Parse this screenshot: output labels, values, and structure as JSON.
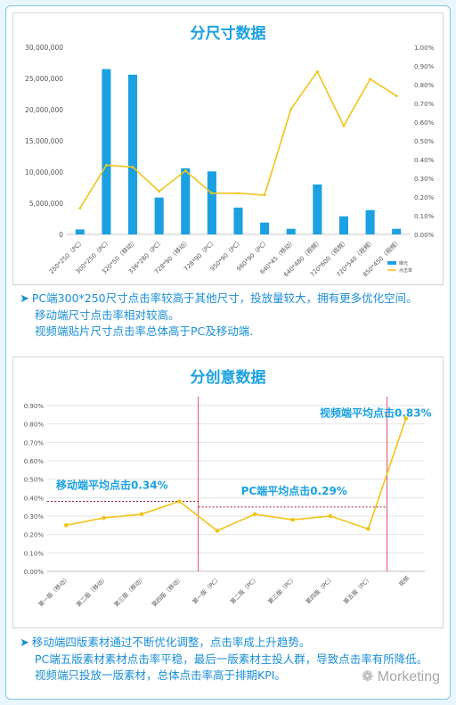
{
  "chart_data": [
    {
      "type": "bar",
      "title": "分尺寸数据",
      "categories": [
        "250*250（PC）",
        "300*250（PC）",
        "320*50（移动）",
        "336*280（PC）",
        "728*90（移动）",
        "728*90（PC）",
        "950*90（PC）",
        "960*90（PC）",
        "640*45（移动）",
        "640*480（视频）",
        "720*600（视频）",
        "720*540（视频）",
        "850*450（视频）"
      ],
      "series": [
        {
          "name": "曝光",
          "type": "bar",
          "axis": "left",
          "values": [
            800000,
            26500000,
            25600000,
            5900000,
            10600000,
            10100000,
            4300000,
            1900000,
            900000,
            8000000,
            2900000,
            3900000,
            900000
          ]
        },
        {
          "name": "点击率",
          "type": "line",
          "axis": "right",
          "values": [
            0.0014,
            0.0037,
            0.0036,
            0.0023,
            0.0034,
            0.0022,
            0.0022,
            0.0021,
            0.0067,
            0.0087,
            0.0058,
            0.0083,
            0.0074
          ]
        }
      ],
      "yleft": {
        "min": 0,
        "max": 30000000,
        "ticks": [
          "0",
          "5,000,000",
          "10,000,000",
          "15,000,000",
          "20,000,000",
          "25,000,000",
          "30,000,000"
        ]
      },
      "yright": {
        "min": 0,
        "max": 0.01,
        "ticks": [
          "0.00%",
          "0.10%",
          "0.20%",
          "0.30%",
          "0.40%",
          "0.50%",
          "0.60%",
          "0.70%",
          "0.80%",
          "0.90%",
          "1.00%"
        ]
      },
      "legend": "bottom-right",
      "colors": {
        "bar": "#1ba1e2",
        "line": "#f0c419"
      }
    },
    {
      "type": "line",
      "title": "分创意数据",
      "categories": [
        "第一版（移动）",
        "第二版（移动）",
        "第三版（移动）",
        "第四版（移动）",
        "第一版（PC）",
        "第二版（PC）",
        "第三版（PC）",
        "第四版（PC）",
        "第五版（PC）",
        "视频"
      ],
      "series": [
        {
          "values": [
            0.0025,
            0.0029,
            0.0031,
            0.0038,
            0.0022,
            0.0031,
            0.0028,
            0.003,
            0.0023,
            0.0083
          ]
        }
      ],
      "ylim": [
        0,
        0.009
      ],
      "yticks": [
        "0.00%",
        "0.10%",
        "0.20%",
        "0.30%",
        "0.40%",
        "0.50%",
        "0.60%",
        "0.70%",
        "0.80%",
        "0.90%"
      ],
      "annotations": [
        {
          "text": "移动端平均点击0.34%",
          "value": 0.0038
        },
        {
          "text": "PC端平均点击0.29%",
          "value": 0.0031
        },
        {
          "text": "视频端平均点击0.83%",
          "value": 0.0083
        }
      ],
      "colors": {
        "line": "#f0c419",
        "divider": "#e0506a",
        "average": "#9b2030"
      }
    }
  ],
  "notes1": [
    "PC端300*250尺寸点击率较高于其他尺寸，投放量较大，拥有更多优化空间。",
    "移动端尺寸点击率相对较高。",
    "视频端贴片尺寸点击率总体高于PC及移动端."
  ],
  "notes2": [
    "移动端四版素材通过不断优化调整，点击率成上升趋势。",
    "PC端五版素材素材点击率平稳，最后一版素材主投人群，导致点击率有所降低。",
    "视频端只投放一版素材，总体点击率高于排期KPI。"
  ],
  "watermark": "Morketing"
}
